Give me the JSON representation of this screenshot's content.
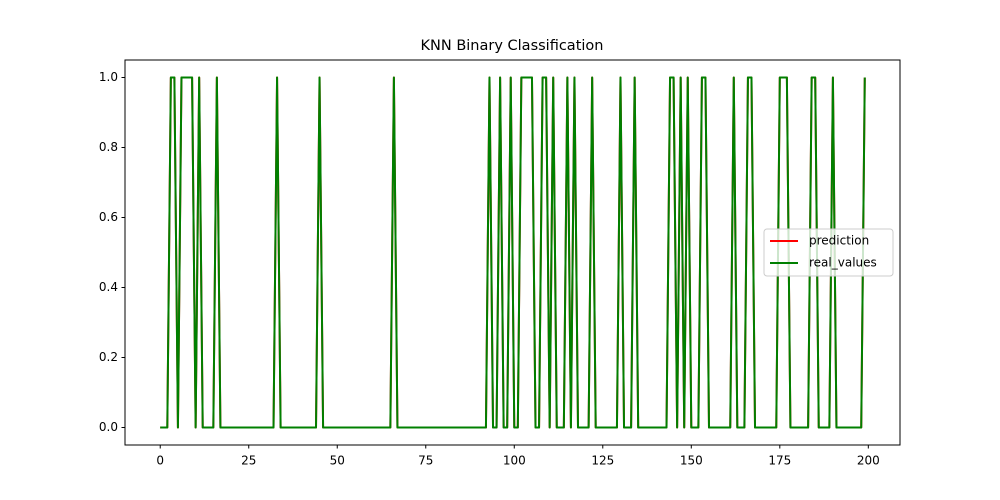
{
  "chart_data": {
    "type": "line",
    "title": "KNN Binary Classification",
    "x": [
      0,
      1,
      2,
      3,
      4,
      5,
      6,
      7,
      8,
      9,
      10,
      11,
      12,
      13,
      14,
      15,
      16,
      17,
      18,
      19,
      20,
      21,
      22,
      23,
      24,
      25,
      26,
      27,
      28,
      29,
      30,
      31,
      32,
      33,
      34,
      35,
      36,
      37,
      38,
      39,
      40,
      41,
      42,
      43,
      44,
      45,
      46,
      47,
      48,
      49,
      50,
      51,
      52,
      53,
      54,
      55,
      56,
      57,
      58,
      59,
      60,
      61,
      62,
      63,
      64,
      65,
      66,
      67,
      68,
      69,
      70,
      71,
      72,
      73,
      74,
      75,
      76,
      77,
      78,
      79,
      80,
      81,
      82,
      83,
      84,
      85,
      86,
      87,
      88,
      89,
      90,
      91,
      92,
      93,
      94,
      95,
      96,
      97,
      98,
      99,
      100,
      101,
      102,
      103,
      104,
      105,
      106,
      107,
      108,
      109,
      110,
      111,
      112,
      113,
      114,
      115,
      116,
      117,
      118,
      119,
      120,
      121,
      122,
      123,
      124,
      125,
      126,
      127,
      128,
      129,
      130,
      131,
      132,
      133,
      134,
      135,
      136,
      137,
      138,
      139,
      140,
      141,
      142,
      143,
      144,
      145,
      146,
      147,
      148,
      149,
      150,
      151,
      152,
      153,
      154,
      155,
      156,
      157,
      158,
      159,
      160,
      161,
      162,
      163,
      164,
      165,
      166,
      167,
      168,
      169,
      170,
      171,
      172,
      173,
      174,
      175,
      176,
      177,
      178,
      179,
      180,
      181,
      182,
      183,
      184,
      185,
      186,
      187,
      188,
      189,
      190,
      191,
      192,
      193,
      194,
      195,
      196,
      197,
      198,
      199
    ],
    "series": [
      {
        "name": "prediction",
        "color": "#ff0000",
        "values": [
          0,
          0,
          0,
          1,
          1,
          0,
          1,
          1,
          1,
          1,
          0,
          1,
          0,
          0,
          0,
          0,
          1,
          0,
          0,
          0,
          0,
          0,
          0,
          0,
          0,
          0,
          0,
          0,
          0,
          0,
          0,
          0,
          0,
          1,
          0,
          0,
          0,
          0,
          0,
          0,
          0,
          0,
          0,
          0,
          0,
          1,
          0,
          0,
          0,
          0,
          0,
          0,
          0,
          0,
          0,
          0,
          0,
          0,
          0,
          0,
          0,
          0,
          0,
          0,
          0,
          0,
          1,
          0,
          0,
          0,
          0,
          0,
          0,
          0,
          0,
          0,
          0,
          0,
          0,
          0,
          0,
          0,
          0,
          0,
          0,
          0,
          0,
          0,
          0,
          0,
          0,
          0,
          0,
          1,
          0,
          0,
          1,
          0,
          0,
          1,
          0,
          0,
          1,
          1,
          1,
          1,
          0,
          0,
          1,
          1,
          0,
          1,
          0,
          0,
          0,
          1,
          0,
          1,
          0,
          0,
          0,
          0,
          1,
          0,
          0,
          0,
          0,
          0,
          0,
          0,
          1,
          0,
          0,
          0,
          1,
          0,
          0,
          0,
          0,
          0,
          0,
          0,
          0,
          0,
          1,
          1,
          0,
          1,
          0,
          1,
          0,
          0,
          0,
          1,
          1,
          0,
          0,
          0,
          0,
          0,
          0,
          0,
          1,
          0,
          0,
          0,
          1,
          1,
          0,
          0,
          0,
          0,
          0,
          0,
          0,
          1,
          1,
          1,
          0,
          0,
          0,
          0,
          0,
          0,
          1,
          1,
          0,
          0,
          0,
          0,
          1,
          0,
          0,
          0,
          0,
          0,
          0,
          0,
          0,
          1
        ]
      },
      {
        "name": "real_values",
        "color": "#008000",
        "values": [
          0,
          0,
          0,
          1,
          1,
          0,
          1,
          1,
          1,
          1,
          0,
          1,
          0,
          0,
          0,
          0,
          1,
          0,
          0,
          0,
          0,
          0,
          0,
          0,
          0,
          0,
          0,
          0,
          0,
          0,
          0,
          0,
          0,
          1,
          0,
          0,
          0,
          0,
          0,
          0,
          0,
          0,
          0,
          0,
          0,
          1,
          0,
          0,
          0,
          0,
          0,
          0,
          0,
          0,
          0,
          0,
          0,
          0,
          0,
          0,
          0,
          0,
          0,
          0,
          0,
          0,
          1,
          0,
          0,
          0,
          0,
          0,
          0,
          0,
          0,
          0,
          0,
          0,
          0,
          0,
          0,
          0,
          0,
          0,
          0,
          0,
          0,
          0,
          0,
          0,
          0,
          0,
          0,
          1,
          0,
          0,
          1,
          0,
          0,
          1,
          0,
          0,
          1,
          1,
          1,
          1,
          0,
          0,
          1,
          1,
          0,
          1,
          0,
          0,
          0,
          1,
          0,
          1,
          0,
          0,
          0,
          0,
          1,
          0,
          0,
          0,
          0,
          0,
          0,
          0,
          1,
          0,
          0,
          0,
          1,
          0,
          0,
          0,
          0,
          0,
          0,
          0,
          0,
          0,
          1,
          1,
          0,
          1,
          0,
          1,
          0,
          0,
          0,
          1,
          1,
          0,
          0,
          0,
          0,
          0,
          0,
          0,
          1,
          0,
          0,
          0,
          1,
          1,
          0,
          0,
          0,
          0,
          0,
          0,
          0,
          1,
          1,
          1,
          0,
          0,
          0,
          0,
          0,
          0,
          1,
          1,
          0,
          0,
          0,
          0,
          1,
          0,
          0,
          0,
          0,
          0,
          0,
          0,
          0,
          1
        ]
      }
    ],
    "xlim": [
      -9.95,
      208.95
    ],
    "xticks": [
      0,
      25,
      50,
      75,
      100,
      125,
      150,
      175,
      200
    ],
    "ylim": [
      -0.05,
      1.05
    ],
    "yticks": [
      {
        "value": 0,
        "label": "0.0"
      },
      {
        "value": 0.2,
        "label": "0.2"
      },
      {
        "value": 0.4,
        "label": "0.4"
      },
      {
        "value": 0.6,
        "label": "0.6"
      },
      {
        "value": 0.8,
        "label": "0.8"
      },
      {
        "value": 1,
        "label": "1.0"
      }
    ],
    "grid": false,
    "legend": "center right"
  }
}
